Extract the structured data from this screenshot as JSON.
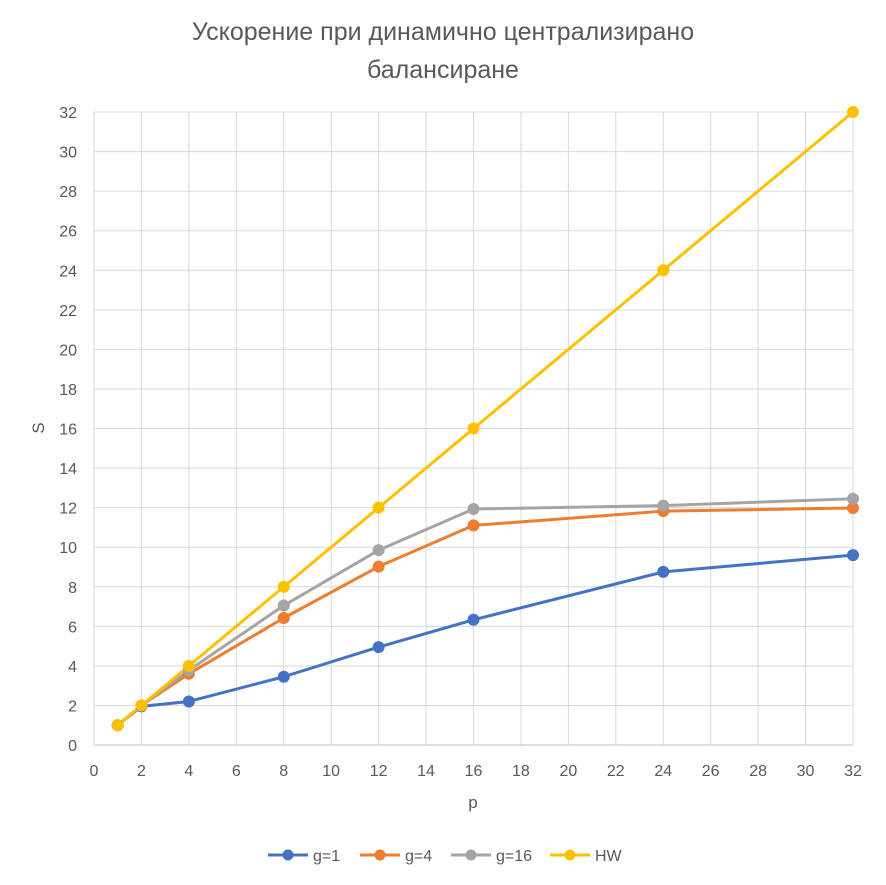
{
  "chart_data": {
    "type": "line",
    "title_line1": "Ускорение при динамично централизирано",
    "title_line2": "балансиране",
    "xlabel": "p",
    "ylabel": "S",
    "xlim": [
      0,
      32
    ],
    "ylim": [
      0,
      32
    ],
    "xticks": [
      0,
      2,
      4,
      6,
      8,
      10,
      12,
      14,
      16,
      18,
      20,
      22,
      24,
      26,
      28,
      30,
      32
    ],
    "yticks": [
      0,
      2,
      4,
      6,
      8,
      10,
      12,
      14,
      16,
      18,
      20,
      22,
      24,
      26,
      28,
      30,
      32
    ],
    "grid": true,
    "legend_position": "bottom",
    "x": [
      1,
      2,
      4,
      8,
      12,
      16,
      24,
      32
    ],
    "series": [
      {
        "name": "g=1",
        "color": "#4472C4",
        "values": [
          1,
          1.95,
          2.2,
          3.45,
          4.95,
          6.33,
          8.75,
          9.6
        ]
      },
      {
        "name": "g=4",
        "color": "#ED7D31",
        "values": [
          1,
          2,
          3.6,
          6.42,
          9.02,
          11.1,
          11.82,
          11.98
        ]
      },
      {
        "name": "g=16",
        "color": "#A5A5A5",
        "values": [
          1,
          2,
          3.78,
          7.05,
          9.85,
          11.93,
          12.1,
          12.45
        ]
      },
      {
        "name": "HW",
        "color": "#FFC000",
        "values": [
          1,
          2,
          4,
          8,
          12,
          16,
          24,
          32
        ]
      }
    ]
  }
}
